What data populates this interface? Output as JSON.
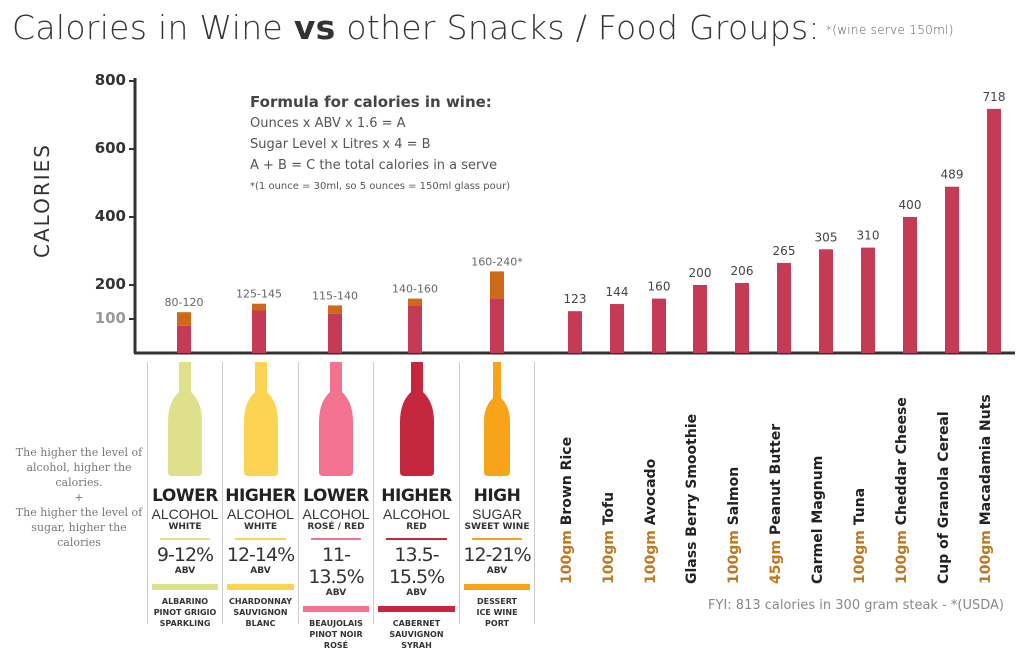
{
  "title": {
    "part1": "Calories in Wine ",
    "bold": "vs",
    "part2": " other Snacks / Food Groups:",
    "note": "*(wine serve 150ml)"
  },
  "formula": {
    "heading": "Formula for calories in wine:",
    "line1": "Ounces  x  ABV  x  1.6  =  A",
    "line2": "Sugar Level  x  Litres  x  4  =  B",
    "line3": "A + B = C the total calories in a serve",
    "note": "*(1 ounce = 30ml, so 5 ounces = 150ml glass pour)"
  },
  "side_note": {
    "l1": "The higher the level of alcohol, higher the calories.",
    "plus": "+",
    "l2": "The higher the level of sugar, higher the calories"
  },
  "fyi": "FYI: 813 calories in 300 gram steak - *(USDA)",
  "colors": {
    "bar": "#c53a55",
    "sugar_top": "#cc6a1a",
    "qty": "#c0781e"
  },
  "chart_data": {
    "type": "bar",
    "ylabel": "CALORIES",
    "ylim": [
      0,
      800
    ],
    "yticks": [
      100,
      200,
      400,
      600,
      800
    ],
    "wine": [
      {
        "range": "80-120",
        "low": 80,
        "high": 120,
        "level": "LOWER",
        "kind": "ALCOHOL",
        "type": "WHITE",
        "abv": "9-12%",
        "abv_label": "ABV",
        "grapes": [
          "ALBARINO",
          "PINOT GRIGIO",
          "SPARKLING"
        ],
        "color": "#dfe08c"
      },
      {
        "range": "125-145",
        "low": 125,
        "high": 145,
        "level": "HIGHER",
        "kind": "ALCOHOL",
        "type": "WHITE",
        "abv": "12-14%",
        "abv_label": "ABV",
        "grapes": [
          "CHARDONNAY",
          "SAUVIGNON",
          "BLANC"
        ],
        "color": "#fdd452"
      },
      {
        "range": "115-140",
        "low": 115,
        "high": 140,
        "level": "LOWER",
        "kind": "ALCOHOL",
        "type": "ROSÉ / RED",
        "abv": "11-13.5%",
        "abv_label": "ABV",
        "grapes": [
          "BEAUJOLAIS",
          "PINOT NOIR",
          "ROSÉ"
        ],
        "color": "#f2728f"
      },
      {
        "range": "140-160",
        "low": 140,
        "high": 160,
        "level": "HIGHER",
        "kind": "ALCOHOL",
        "type": "RED",
        "abv": "13.5-15.5%",
        "abv_label": "ABV",
        "grapes": [
          "CABERNET",
          "SAUVIGNON",
          "SYRAH"
        ],
        "color": "#c5283e"
      },
      {
        "range": "160-240*",
        "low": 160,
        "high": 240,
        "level": "HIGH",
        "kind": "SUGAR",
        "type": "SWEET WINE",
        "abv": "12-21%",
        "abv_label": "ABV",
        "grapes": [
          "DESSERT",
          "ICE WINE",
          "PORT"
        ],
        "color": "#f8a41a"
      }
    ],
    "foods": [
      {
        "qty": "100gm",
        "name": "Brown Rice",
        "value": 123
      },
      {
        "qty": "100gm",
        "name": "Tofu",
        "value": 144
      },
      {
        "qty": "100gm",
        "name": "Avocado",
        "value": 160
      },
      {
        "qty": "",
        "name": "Glass Berry Smoothie",
        "value": 200
      },
      {
        "qty": "100gm",
        "name": "Salmon",
        "value": 206
      },
      {
        "qty": "45gm",
        "name": "Peanut Butter",
        "value": 265
      },
      {
        "qty": "",
        "name": "Carmel Magnum",
        "value": 305
      },
      {
        "qty": "100gm",
        "name": "Tuna",
        "value": 310
      },
      {
        "qty": "100gm",
        "name": "Cheddar Cheese",
        "value": 400
      },
      {
        "qty": "",
        "name": "Cup of Granola Cereal",
        "value": 489
      },
      {
        "qty": "100gm",
        "name": "Macadamia Nuts",
        "value": 718
      }
    ]
  }
}
